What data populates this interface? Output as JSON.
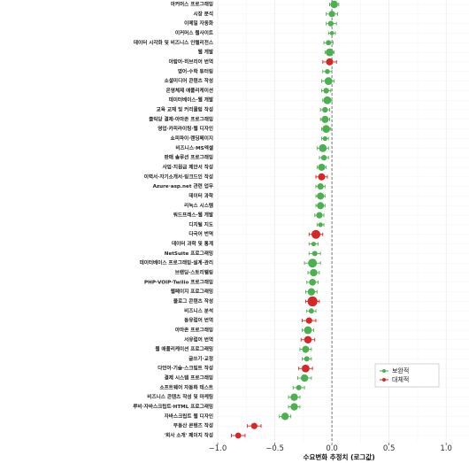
{
  "chart_data": {
    "type": "scatter",
    "xlabel": "수요변화 추정치 (로그값)",
    "xlim": [
      -1.0,
      1.2
    ],
    "xticks": [
      -1.0,
      -0.5,
      0.0,
      0.5,
      1.0
    ],
    "xtick_labels": [
      "−1.0",
      "−0.5",
      "0.0",
      "0.5",
      "1.0"
    ],
    "reference_line_x": 0.0,
    "grid": true,
    "legend": {
      "placement": "bottom-right",
      "entries": [
        {
          "label": "보완적",
          "color": "#4caf50"
        },
        {
          "label": "대체적",
          "color": "#d62728"
        }
      ]
    },
    "categories": [
      "아커머스 프로그래밍",
      "시장 분석",
      "이메일 자동화",
      "이커머스 웹사이트",
      "데이터 시각화 및 비즈니스 인텔리전스",
      "웹 개발",
      "아랍어·히브리어 번역",
      "영어·수학 튜터링",
      "소셜미디어 콘텐츠 작성",
      "온영체제 애플리케이션",
      "데이터베이스·웹 개발",
      "교육 교재 및 커리큘럼 작성",
      "클릭당 결제·아마존 프로그래밍",
      "영업·카피라이팅·웹 디자인",
      "쇼피파이·랜딩페이지",
      "비즈니스·MS엑셀",
      "판매 솔루션 프로그래밍",
      "사업·지원금 제안서 작성",
      "이력서·자기소개서·링크드인 작성",
      "Azure·asp.net 관련 업무",
      "데이터 과학",
      "리눅스 시스템",
      "워드프레스·웹 개발",
      "디지털 지도",
      "다국어 번역",
      "데이터 과학 및 통계",
      "NetSuite 프로그래밍",
      "데이터베이스 프로그래밍·설계·관리",
      "브랜딩·스토리텔링",
      "PHP·VOIP·Twilio 프로그래밍",
      "웹페이지 프로그래밍",
      "블로그 콘텐츠 작성",
      "비즈니스 분석",
      "동유럽어 번역",
      "아마존 프로그래밍",
      "서유럽어 번역",
      "웹 애플리케이션 프로그래밍",
      "글쓰기·교정",
      "다언어·기술·스크립트 작성",
      "결제 시스템 프로그래밍",
      "소프트웨어 자동화 테스트",
      "비즈니스 콘텐츠 작성 및 마케팅",
      "루비·자바스크립트·HTML 프로그래밍",
      "자바스크립트 웹 디자인",
      "부동산 콘텐츠 작성",
      "'회사 소개' 페이지 작성"
    ],
    "series": [
      {
        "name": "보완적",
        "color": "#4caf50",
        "points": [
          {
            "category": "아커머스 프로그래밍",
            "x": 0.02,
            "lo": -0.02,
            "hi": 0.06,
            "size": 4.2
          },
          {
            "category": "시장 분석",
            "x": 0.0,
            "lo": -0.05,
            "hi": 0.05,
            "size": 3.6
          },
          {
            "category": "이메일 자동화",
            "x": -0.01,
            "lo": -0.05,
            "hi": 0.04,
            "size": 3.2
          },
          {
            "category": "이커머스 웹사이트",
            "x": 0.0,
            "lo": -0.03,
            "hi": 0.03,
            "size": 2.4
          },
          {
            "category": "데이터 시각화 및 비즈니스 인텔리전스",
            "x": -0.03,
            "lo": -0.07,
            "hi": 0.01,
            "size": 3.0
          },
          {
            "category": "웹 개발",
            "x": -0.02,
            "lo": -0.06,
            "hi": 0.02,
            "size": 4.4
          },
          {
            "category": "영어·수학 튜터링",
            "x": -0.04,
            "lo": -0.08,
            "hi": 0.0,
            "size": 2.8
          },
          {
            "category": "소셜미디어 콘텐츠 작성",
            "x": -0.03,
            "lo": -0.09,
            "hi": 0.02,
            "size": 4.4
          },
          {
            "category": "온영체제 애플리케이션",
            "x": -0.05,
            "lo": -0.09,
            "hi": -0.01,
            "size": 3.2
          },
          {
            "category": "데이터베이스·웹 개발",
            "x": -0.04,
            "lo": -0.08,
            "hi": 0.0,
            "size": 4.4
          },
          {
            "category": "교육 교재 및 커리큘럼 작성",
            "x": -0.06,
            "lo": -0.1,
            "hi": -0.02,
            "size": 3.2
          },
          {
            "category": "클릭당 결제·아마존 프로그래밍",
            "x": -0.06,
            "lo": -0.1,
            "hi": -0.02,
            "size": 4.0
          },
          {
            "category": "영업·카피라이팅·웹 디자인",
            "x": -0.05,
            "lo": -0.09,
            "hi": -0.01,
            "size": 4.4
          },
          {
            "category": "쇼피파이·랜딩페이지",
            "x": -0.06,
            "lo": -0.09,
            "hi": -0.03,
            "size": 2.6
          },
          {
            "category": "비즈니스·MS엑셀",
            "x": -0.08,
            "lo": -0.13,
            "hi": -0.03,
            "size": 4.4
          },
          {
            "category": "판매 솔루션 프로그래밍",
            "x": -0.07,
            "lo": -0.11,
            "hi": -0.03,
            "size": 3.2
          },
          {
            "category": "사업·지원금 제안서 작성",
            "x": -0.09,
            "lo": -0.13,
            "hi": -0.05,
            "size": 4.0
          },
          {
            "category": "Azure·asp.net 관련 업무",
            "x": -0.1,
            "lo": -0.14,
            "hi": -0.06,
            "size": 3.6
          },
          {
            "category": "데이터 과학",
            "x": -0.1,
            "lo": -0.14,
            "hi": -0.06,
            "size": 4.0
          },
          {
            "category": "리눅스 시스템",
            "x": -0.1,
            "lo": -0.14,
            "hi": -0.06,
            "size": 4.0
          },
          {
            "category": "워드프레스·웹 개발",
            "x": -0.11,
            "lo": -0.15,
            "hi": -0.07,
            "size": 3.6
          },
          {
            "category": "디지털 지도",
            "x": -0.1,
            "lo": -0.13,
            "hi": -0.07,
            "size": 2.6
          },
          {
            "category": "데이터 과학 및 통계",
            "x": -0.16,
            "lo": -0.2,
            "hi": -0.12,
            "size": 2.6
          },
          {
            "category": "NetSuite 프로그래밍",
            "x": -0.15,
            "lo": -0.2,
            "hi": -0.1,
            "size": 3.0
          },
          {
            "category": "데이터베이스 프로그래밍·설계·관리",
            "x": -0.17,
            "lo": -0.24,
            "hi": -0.1,
            "size": 5.0
          },
          {
            "category": "브랜딩·스토리텔링",
            "x": -0.16,
            "lo": -0.21,
            "hi": -0.11,
            "size": 4.2
          },
          {
            "category": "PHP·VOIP·Twilio 프로그래밍",
            "x": -0.17,
            "lo": -0.22,
            "hi": -0.12,
            "size": 3.8
          },
          {
            "category": "웹페이지 프로그래밍",
            "x": -0.18,
            "lo": -0.23,
            "hi": -0.13,
            "size": 4.2
          },
          {
            "category": "비즈니스 분석",
            "x": -0.18,
            "lo": -0.22,
            "hi": -0.14,
            "size": 3.0
          },
          {
            "category": "아마존 프로그래밍",
            "x": -0.21,
            "lo": -0.26,
            "hi": -0.16,
            "size": 4.4
          },
          {
            "category": "웹 애플리케이션 프로그래밍",
            "x": -0.23,
            "lo": -0.28,
            "hi": -0.18,
            "size": 4.0
          },
          {
            "category": "글쓰기·교정",
            "x": -0.22,
            "lo": -0.26,
            "hi": -0.18,
            "size": 3.0
          },
          {
            "category": "결제 시스템 프로그래밍",
            "x": -0.24,
            "lo": -0.3,
            "hi": -0.18,
            "size": 4.2
          },
          {
            "category": "소프트웨어 자동화 테스트",
            "x": -0.29,
            "lo": -0.34,
            "hi": -0.24,
            "size": 3.0
          },
          {
            "category": "비즈니스 콘텐츠 작성 및 마케팅",
            "x": -0.33,
            "lo": -0.38,
            "hi": -0.28,
            "size": 4.2
          },
          {
            "category": "루비·자바스크립트·HTML 프로그래밍",
            "x": -0.33,
            "lo": -0.38,
            "hi": -0.28,
            "size": 4.2
          },
          {
            "category": "자바스크립트 웹 디자인",
            "x": -0.41,
            "lo": -0.46,
            "hi": -0.36,
            "size": 4.2
          }
        ]
      },
      {
        "name": "대체적",
        "color": "#d62728",
        "points": [
          {
            "category": "아랍어·히브리어 번역",
            "x": -0.02,
            "lo": -0.08,
            "hi": 0.04,
            "size": 4.0
          },
          {
            "category": "이력서·자기소개서·링크드인 작성",
            "x": -0.09,
            "lo": -0.14,
            "hi": -0.04,
            "size": 4.0
          },
          {
            "category": "다국어 번역",
            "x": -0.14,
            "lo": -0.2,
            "hi": -0.08,
            "size": 5.0
          },
          {
            "category": "블로그 콘텐츠 작성",
            "x": -0.17,
            "lo": -0.23,
            "hi": -0.11,
            "size": 5.6
          },
          {
            "category": "동유럽어 번역",
            "x": -0.2,
            "lo": -0.26,
            "hi": -0.14,
            "size": 3.6
          },
          {
            "category": "서유럽어 번역",
            "x": -0.21,
            "lo": -0.27,
            "hi": -0.15,
            "size": 4.2
          },
          {
            "category": "다언어·기술·스크립트 작성",
            "x": -0.23,
            "lo": -0.29,
            "hi": -0.17,
            "size": 4.4
          },
          {
            "category": "부동산 콘텐츠 작성",
            "x": -0.68,
            "lo": -0.74,
            "hi": -0.62,
            "size": 3.6
          },
          {
            "category": "'회사 소개' 페이지 작성",
            "x": -0.82,
            "lo": -0.88,
            "hi": -0.76,
            "size": 3.4
          }
        ]
      }
    ]
  },
  "colors": {
    "complement": "#4caf50",
    "substitute": "#d62728",
    "reference_line": "#555555",
    "grid": "#e8e8e8"
  }
}
